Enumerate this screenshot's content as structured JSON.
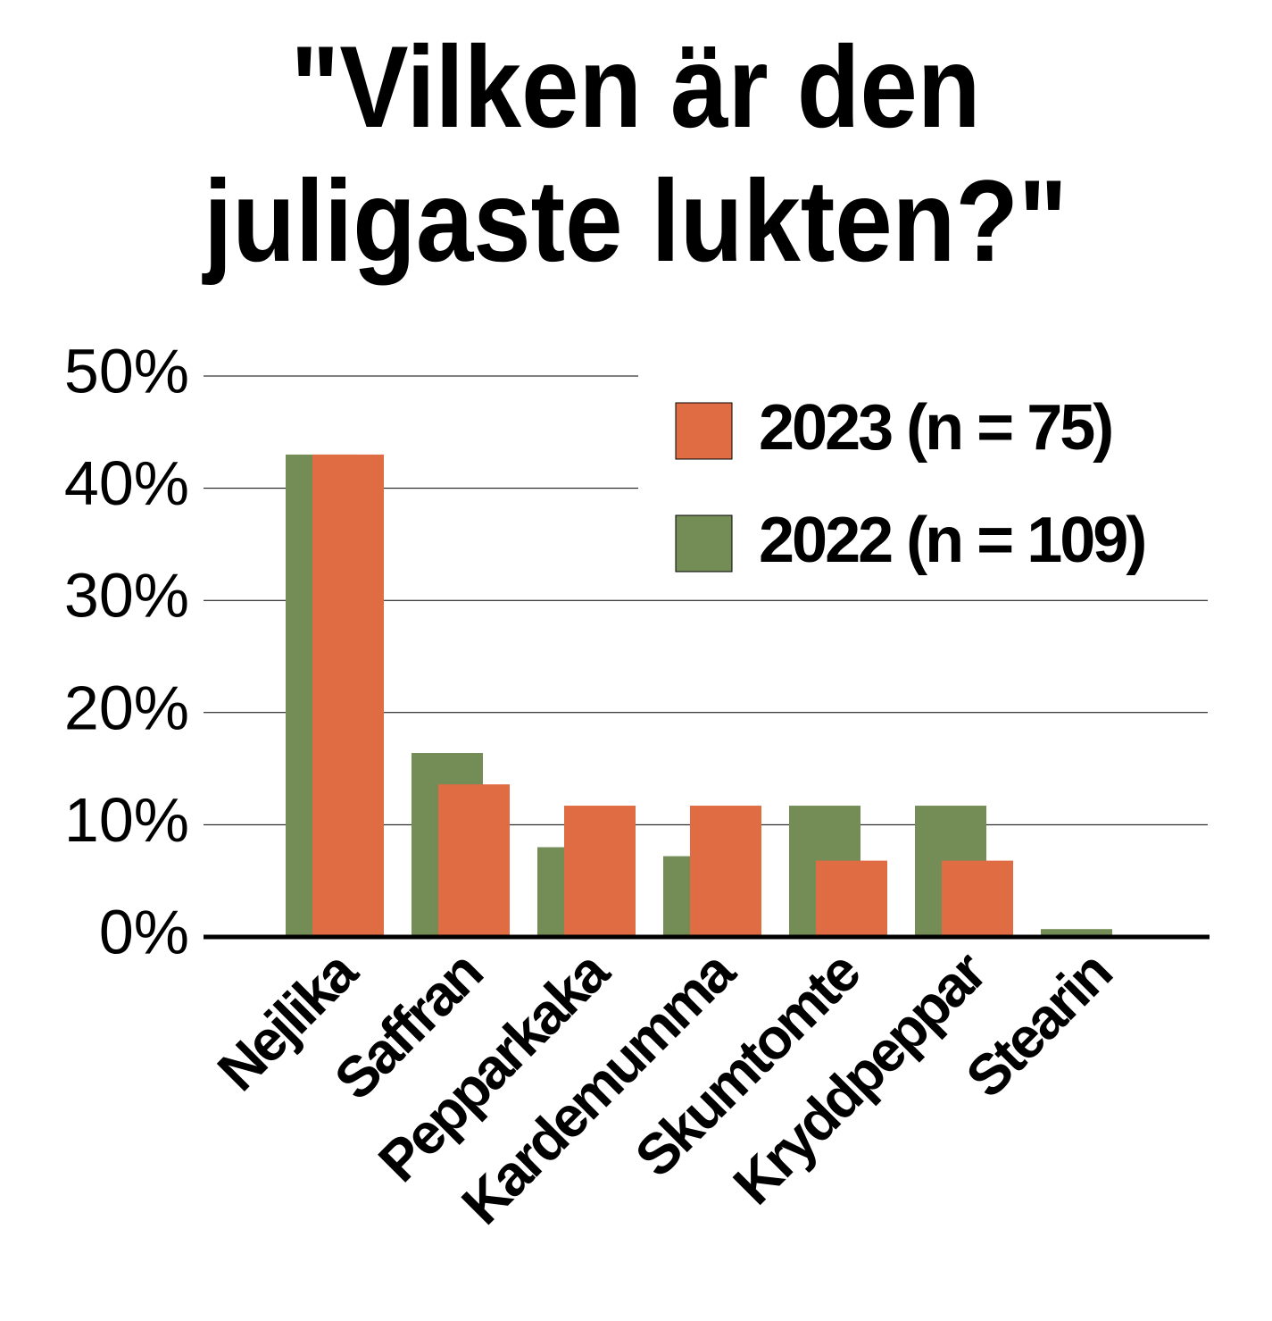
{
  "chart_data": {
    "type": "bar",
    "title": "\"Vilken är den juligaste lukten?\"",
    "categories": [
      "Nejlika",
      "Saffran",
      "Pepparkaka",
      "Kardemumma",
      "Skumtomte",
      "Kryddpeppar",
      "Stearin"
    ],
    "series": [
      {
        "name": "2023 (n = 75)",
        "color": "#e06c43",
        "values": [
          43,
          13.6,
          11.7,
          11.7,
          6.8,
          6.8,
          0
        ]
      },
      {
        "name": "2022 (n = 109)",
        "color": "#748d57",
        "values": [
          43,
          16.4,
          8,
          7.2,
          11.7,
          11.7,
          0.7
        ]
      }
    ],
    "ylim": [
      0,
      50
    ],
    "yticks": [
      {
        "value": 0,
        "label": "0%"
      },
      {
        "value": 10,
        "label": "10%"
      },
      {
        "value": 20,
        "label": "20%"
      },
      {
        "value": 30,
        "label": "30%"
      },
      {
        "value": 40,
        "label": "40%"
      },
      {
        "value": 50,
        "label": "50%"
      }
    ],
    "grid": true,
    "legend": "top-right"
  }
}
